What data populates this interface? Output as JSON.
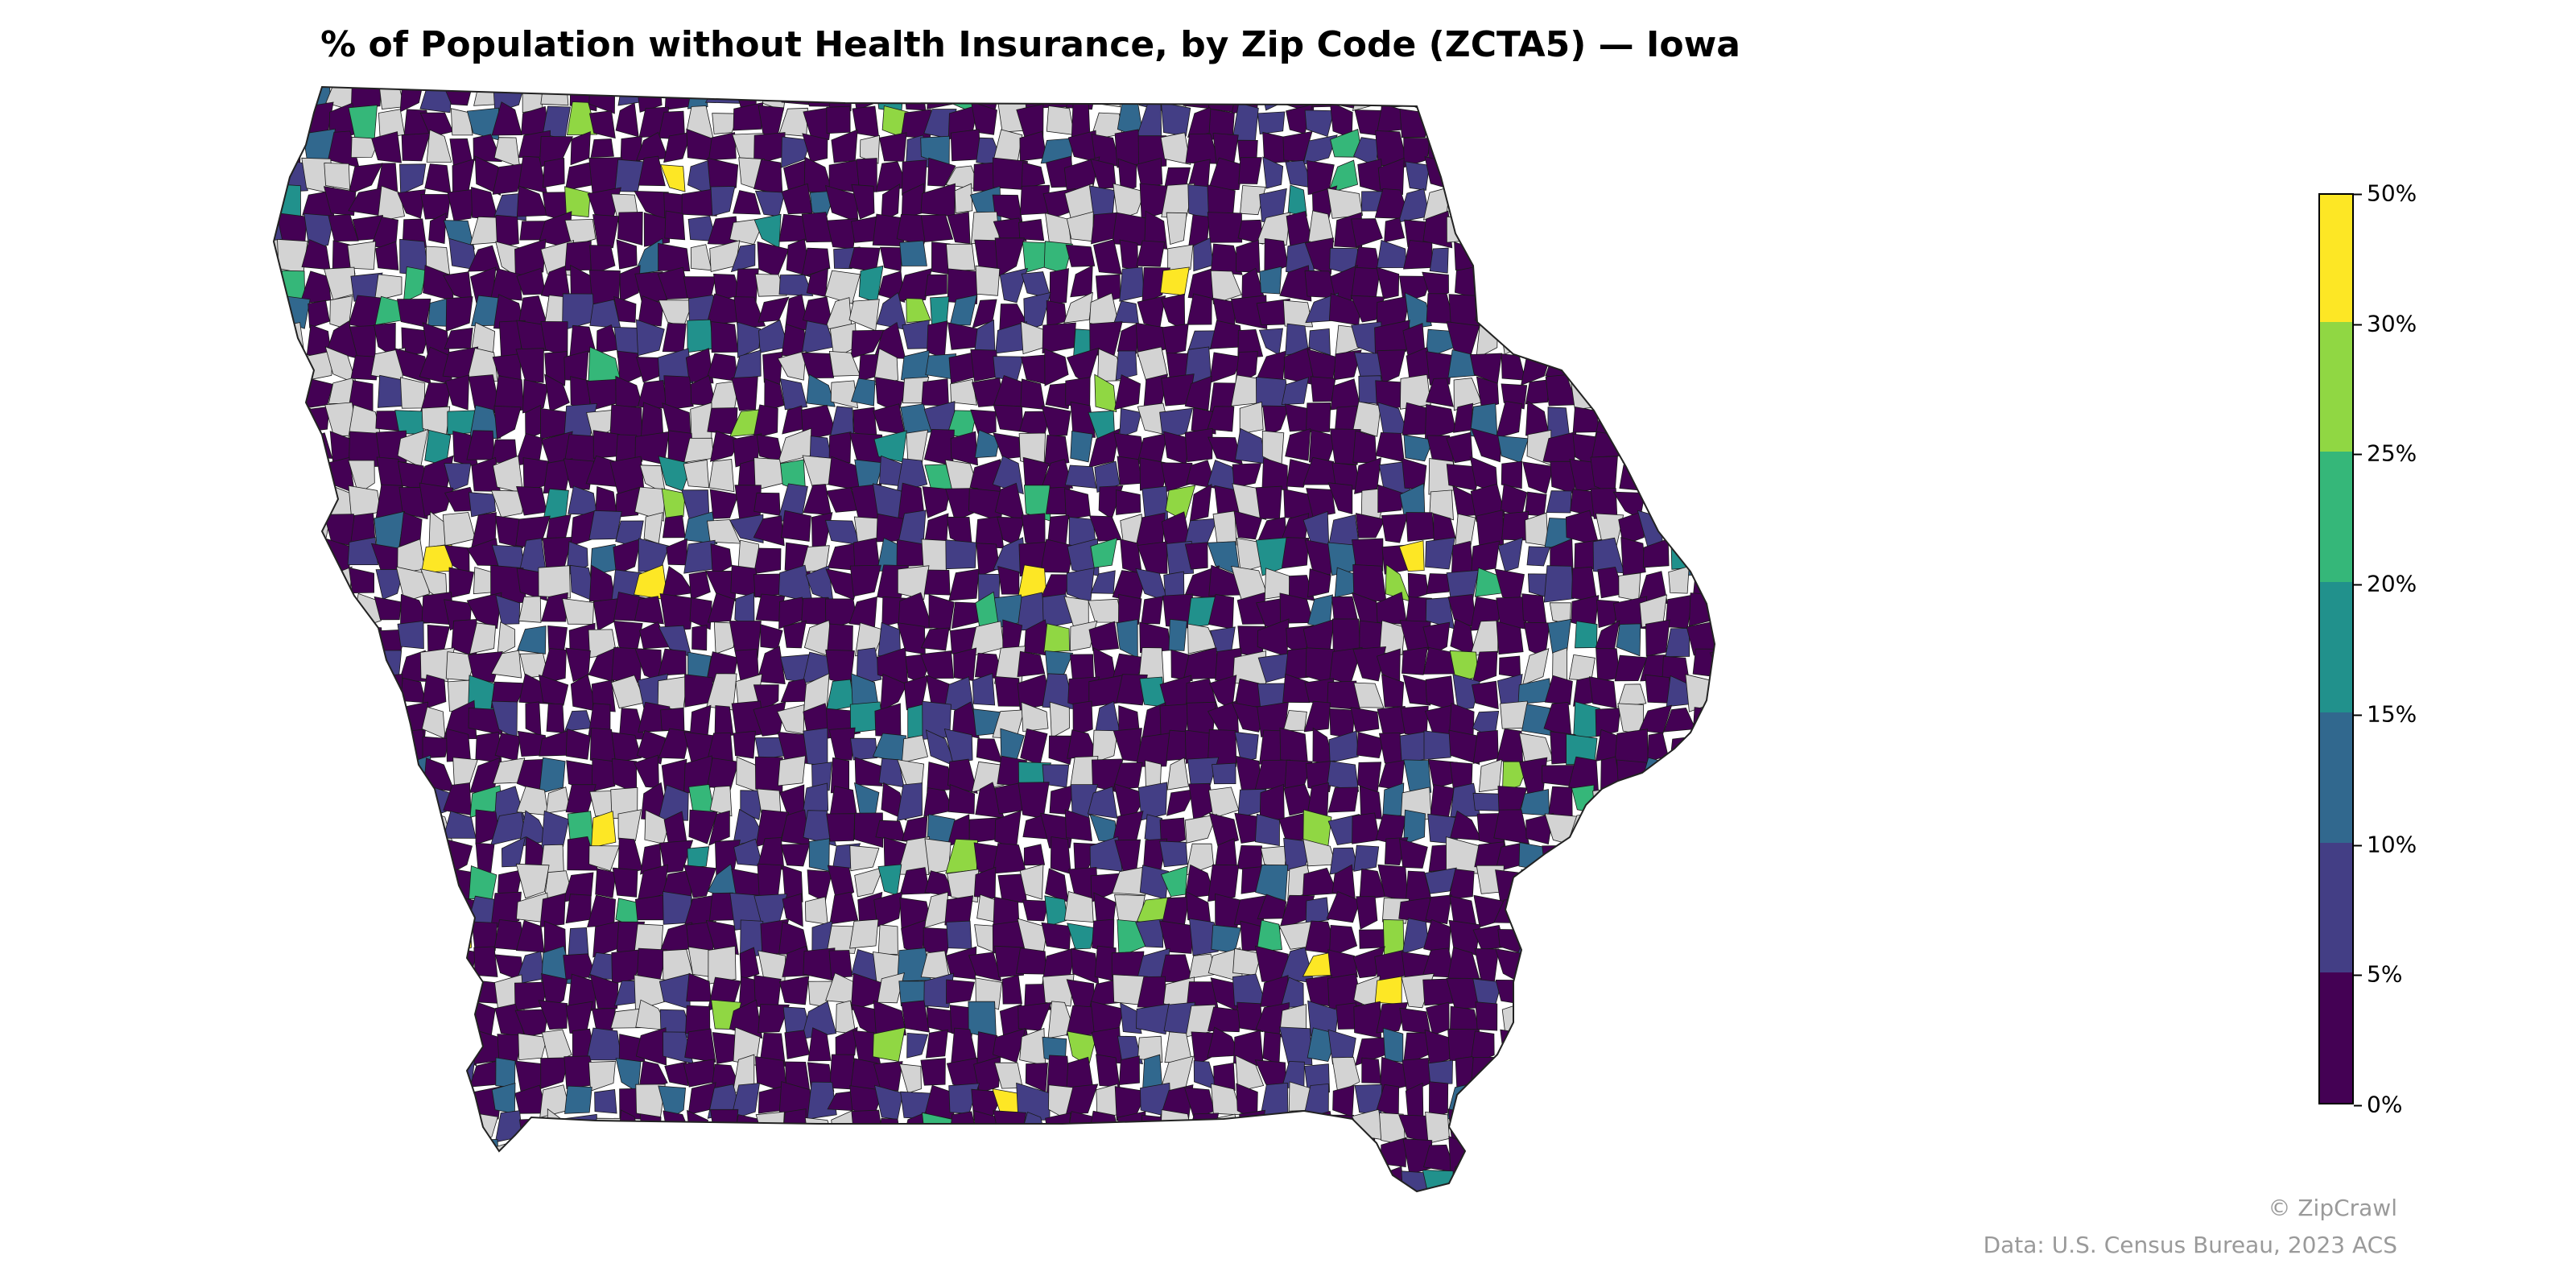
{
  "title": "% of Population without Health Insurance, by Zip Code (ZCTA5) — Iowa",
  "legend": {
    "bins": [
      {
        "from": 0,
        "to": 5,
        "color": "#440154"
      },
      {
        "from": 5,
        "to": 10,
        "color": "#433e85"
      },
      {
        "from": 10,
        "to": 15,
        "color": "#31688e"
      },
      {
        "from": 15,
        "to": 20,
        "color": "#21918c"
      },
      {
        "from": 20,
        "to": 25,
        "color": "#35b779"
      },
      {
        "from": 25,
        "to": 30,
        "color": "#90d743"
      },
      {
        "from": 30,
        "to": 50,
        "color": "#fde725"
      }
    ],
    "tick_labels": [
      "0%",
      "5%",
      "10%",
      "15%",
      "20%",
      "25%",
      "30%",
      "50%"
    ]
  },
  "no_data_color": "#d3d3d3",
  "outline_color": "#222222",
  "credits": {
    "line1": "© ZipCrawl",
    "line2": "Data: U.S. Census Bureau, 2023 ACS"
  }
}
